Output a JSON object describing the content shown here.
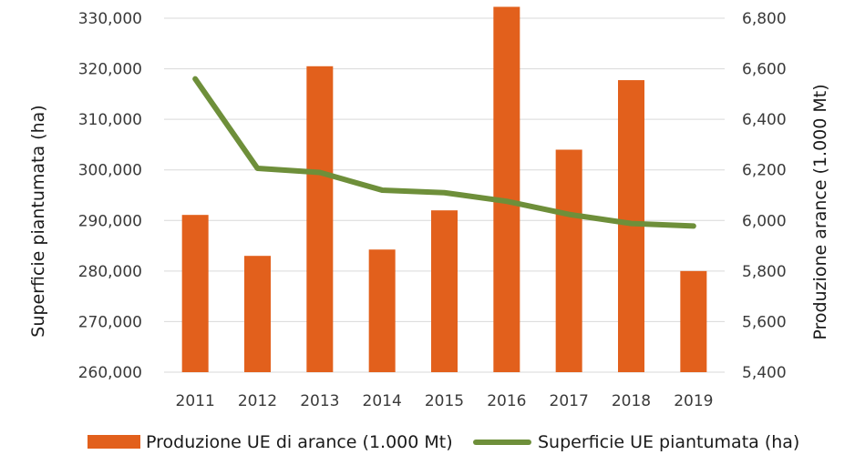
{
  "chart_data": {
    "type": "bar+line",
    "categories": [
      "2011",
      "2012",
      "2013",
      "2014",
      "2015",
      "2016",
      "2017",
      "2018",
      "2019"
    ],
    "series": [
      {
        "name": "Produzione UE di arance (1.000 Mt)",
        "type": "bar",
        "axis": "right",
        "color": "#E2601C",
        "values": [
          6022,
          5860,
          6610,
          5885,
          6040,
          6845,
          6280,
          6555,
          5800
        ]
      },
      {
        "name": "Superficie UE piantumata (ha)",
        "type": "line",
        "axis": "left",
        "color": "#6E8F3A",
        "values": [
          318000,
          300300,
          299500,
          296000,
          295500,
          293800,
          291200,
          289400,
          288900
        ]
      }
    ],
    "ylabel_left": "Superficie piantumata (ha)",
    "ylabel_right": "Produzione arance (1.000 Mt)",
    "ylim_left": [
      260000,
      330000
    ],
    "ylim_right": [
      5400,
      6800
    ],
    "yticks_left": [
      "260,000",
      "270,000",
      "280,000",
      "290,000",
      "300,000",
      "310,000",
      "320,000",
      "330,000"
    ],
    "yticks_right": [
      "5,400",
      "5,600",
      "5,800",
      "6,000",
      "6,200",
      "6,400",
      "6,600",
      "6,800"
    ],
    "grid": true,
    "legend_position": "bottom"
  }
}
